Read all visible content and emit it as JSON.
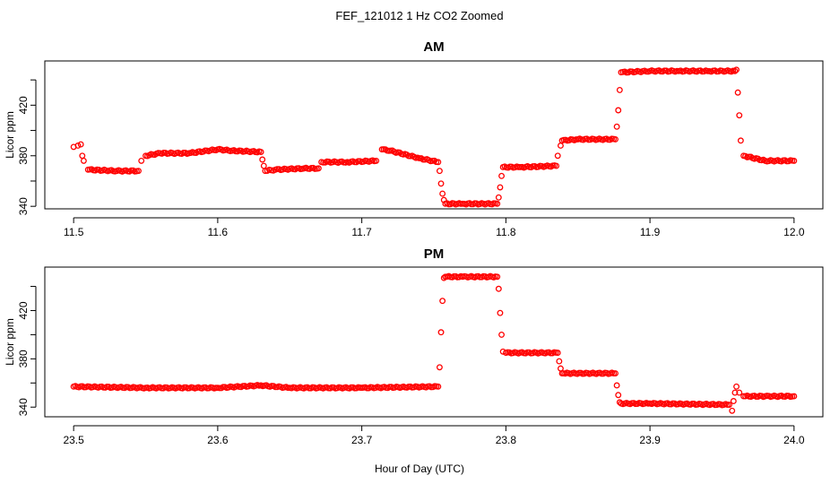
{
  "figure": {
    "title": "FEF_121012  1 Hz CO2 Zoomed",
    "xlabel": "Hour of Day (UTC)"
  },
  "colors": {
    "points": "#ff0000",
    "axes": "#000000"
  },
  "chart_data": [
    {
      "type": "scatter",
      "title": "AM",
      "xlabel": "",
      "ylabel": "Licor ppm",
      "xlim": [
        11.48,
        12.02
      ],
      "ylim": [
        338,
        455
      ],
      "xticks": [
        11.5,
        11.6,
        11.7,
        11.8,
        11.9,
        12.0
      ],
      "xtick_labels": [
        "11.5",
        "11.6",
        "11.7",
        "11.8",
        "11.9",
        "12.0"
      ],
      "yticks": [
        340,
        360,
        380,
        400,
        420,
        440
      ],
      "ytick_labels": [
        "340",
        "",
        "380",
        "",
        "420",
        ""
      ],
      "grid": false,
      "series": [
        {
          "marker": "open-circle",
          "color": "#ff0000",
          "x": [
            11.5,
            11.503,
            11.505,
            11.506,
            11.507,
            11.51,
            11.53,
            11.545,
            11.547,
            11.55,
            11.56,
            11.58,
            11.6,
            11.61,
            11.63,
            11.631,
            11.632,
            11.633,
            11.64,
            11.66,
            11.67,
            11.672,
            11.69,
            11.71,
            11.714,
            11.72,
            11.74,
            11.753,
            11.754,
            11.755,
            11.756,
            11.757,
            11.758,
            11.77,
            11.794,
            11.795,
            11.796,
            11.797,
            11.798,
            11.81,
            11.835,
            11.836,
            11.838,
            11.839,
            11.85,
            11.876,
            11.877,
            11.878,
            11.879,
            11.88,
            11.9,
            11.92,
            11.94,
            11.959,
            11.96,
            11.961,
            11.962,
            11.963,
            11.965,
            11.98,
            12.0
          ],
          "y": [
            387,
            388,
            389,
            380,
            376,
            369,
            368,
            368,
            376,
            380,
            382,
            382,
            385,
            384,
            383,
            377,
            372,
            368,
            369,
            370,
            370,
            375,
            375,
            376,
            385,
            384,
            378,
            375,
            368,
            358,
            350,
            345,
            342,
            342,
            342,
            347,
            355,
            364,
            371,
            371,
            372,
            380,
            388,
            392,
            393,
            393,
            403,
            416,
            432,
            446,
            447,
            447,
            447,
            447,
            448,
            430,
            412,
            392,
            380,
            376,
            376
          ]
        }
      ]
    },
    {
      "type": "scatter",
      "title": "PM",
      "xlabel": "Hour of Day (UTC)",
      "ylabel": "Licor ppm",
      "xlim": [
        23.48,
        24.02
      ],
      "ylim": [
        332,
        456
      ],
      "xticks": [
        23.5,
        23.6,
        23.7,
        23.8,
        23.9,
        24.0
      ],
      "xtick_labels": [
        "23.5",
        "23.6",
        "23.7",
        "23.8",
        "23.9",
        "24.0"
      ],
      "yticks": [
        340,
        360,
        380,
        400,
        420,
        440
      ],
      "ytick_labels": [
        "340",
        "",
        "380",
        "",
        "420",
        ""
      ],
      "grid": false,
      "series": [
        {
          "marker": "open-circle",
          "color": "#ff0000",
          "x": [
            23.5,
            23.55,
            23.6,
            23.63,
            23.65,
            23.7,
            23.753,
            23.754,
            23.755,
            23.756,
            23.757,
            23.758,
            23.77,
            23.794,
            23.795,
            23.796,
            23.797,
            23.798,
            23.8,
            23.836,
            23.837,
            23.838,
            23.839,
            23.84,
            23.876,
            23.877,
            23.878,
            23.879,
            23.88,
            23.9,
            23.955,
            23.957,
            23.958,
            23.959,
            23.96,
            23.962,
            23.965,
            23.98,
            24.0
          ],
          "y": [
            357,
            356,
            356,
            358,
            356,
            356,
            357,
            373,
            402,
            428,
            447,
            448,
            448,
            448,
            438,
            418,
            400,
            386,
            385,
            385,
            378,
            372,
            368,
            368,
            368,
            358,
            350,
            344,
            343,
            343,
            342,
            337,
            345,
            352,
            357,
            352,
            349,
            349,
            349
          ]
        }
      ]
    }
  ]
}
